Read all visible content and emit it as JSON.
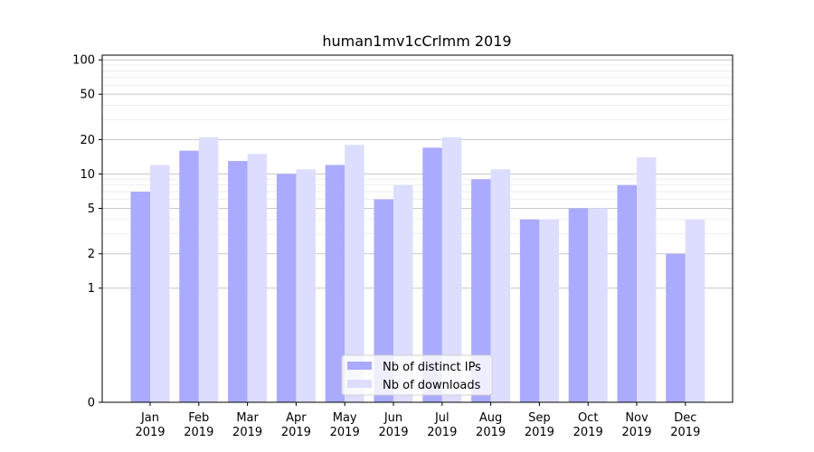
{
  "chart_data": {
    "type": "bar",
    "title": "human1mv1cCrlmm 2019",
    "xlabel": "",
    "ylabel": "",
    "yscale": "symlog",
    "ylim": [
      0,
      110
    ],
    "yticks": [
      0,
      1,
      2,
      5,
      10,
      20,
      50,
      100
    ],
    "ytick_labels": [
      "0",
      "1",
      "2",
      "5",
      "10",
      "20",
      "50",
      "100"
    ],
    "grid": true,
    "legend_position": "lower center",
    "categories": [
      {
        "month": "Jan",
        "year": "2019"
      },
      {
        "month": "Feb",
        "year": "2019"
      },
      {
        "month": "Mar",
        "year": "2019"
      },
      {
        "month": "Apr",
        "year": "2019"
      },
      {
        "month": "May",
        "year": "2019"
      },
      {
        "month": "Jun",
        "year": "2019"
      },
      {
        "month": "Jul",
        "year": "2019"
      },
      {
        "month": "Aug",
        "year": "2019"
      },
      {
        "month": "Sep",
        "year": "2019"
      },
      {
        "month": "Oct",
        "year": "2019"
      },
      {
        "month": "Nov",
        "year": "2019"
      },
      {
        "month": "Dec",
        "year": "2019"
      }
    ],
    "series": [
      {
        "name": "Nb of distinct IPs",
        "color": "#aaaaff",
        "values": [
          7,
          16,
          13,
          10,
          12,
          6,
          17,
          9,
          4,
          5,
          8,
          2
        ]
      },
      {
        "name": "Nb of downloads",
        "color": "#ddddff",
        "values": [
          12,
          21,
          15,
          11,
          18,
          8,
          21,
          11,
          4,
          5,
          14,
          4
        ]
      }
    ]
  }
}
